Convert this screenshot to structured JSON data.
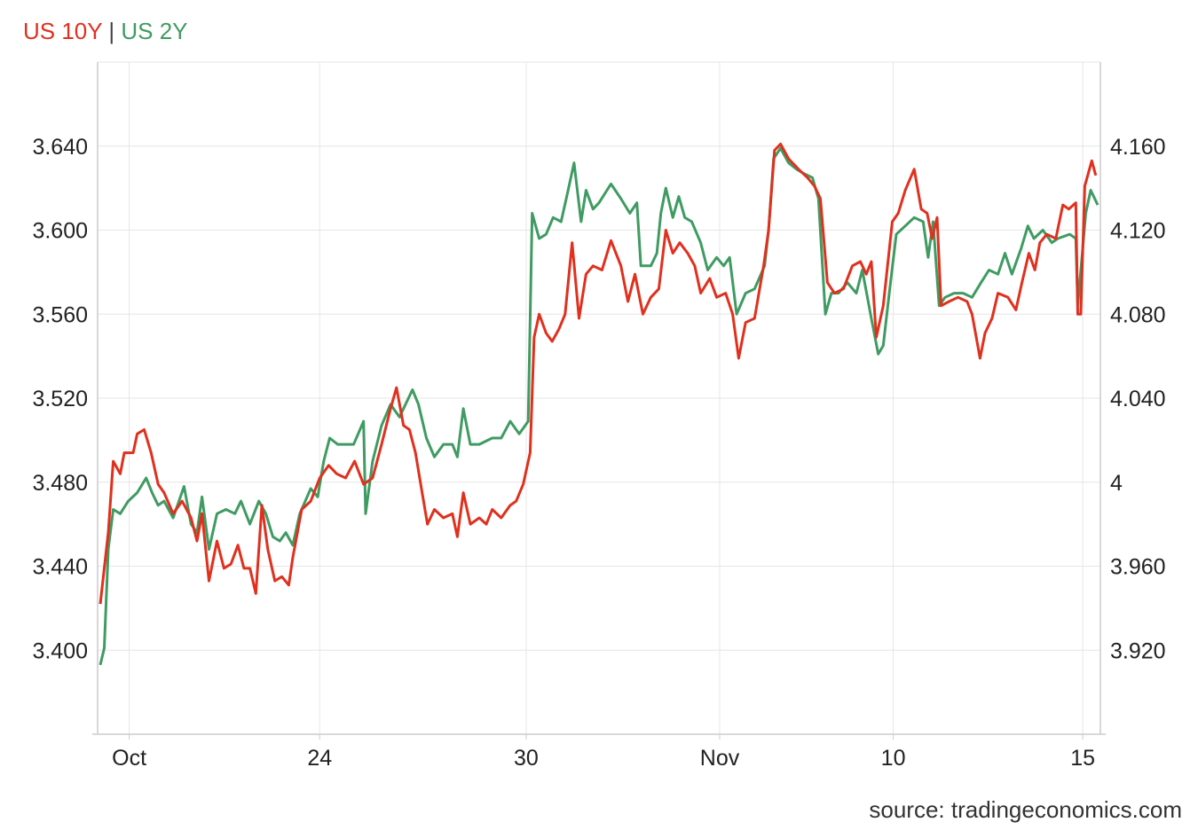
{
  "legend": {
    "series1": "US 10Y",
    "separator": "|",
    "series2": "US 2Y"
  },
  "source": "source: tradingeconomics.com",
  "colors": {
    "us10y": "#e0301e",
    "us2y": "#3f9b62",
    "grid": "#e6e6e6",
    "axis": "#cccccc",
    "text": "#222222"
  },
  "chart_data": {
    "type": "line",
    "title": "US 10Y | US 2Y",
    "xlabel": "",
    "ylabel": "",
    "x_unit": "time index (0-100 over Oct–Nov 15 window)",
    "xlim": [
      0,
      100
    ],
    "x_ticks": [
      {
        "label": "Oct",
        "x": 2.9
      },
      {
        "label": "24",
        "x": 22.0
      },
      {
        "label": "30",
        "x": 42.7
      },
      {
        "label": "Nov",
        "x": 62.1
      },
      {
        "label": "10",
        "x": 79.5
      },
      {
        "label": "15",
        "x": 98.5
      }
    ],
    "y_left": {
      "ylim": [
        3.36,
        3.68
      ],
      "ticks": [
        3.4,
        3.44,
        3.48,
        3.52,
        3.56,
        3.6,
        3.64
      ],
      "tick_labels": [
        "3.400",
        "3.440",
        "3.480",
        "3.520",
        "3.560",
        "3.600",
        "3.640"
      ]
    },
    "y_right": {
      "ylim": [
        3.88,
        4.2
      ],
      "ticks": [
        3.92,
        3.96,
        4.0,
        4.04,
        4.08,
        4.12,
        4.16
      ],
      "tick_labels": [
        "3.920",
        "3.960",
        "4",
        "4.040",
        "4.080",
        "4.120",
        "4.160"
      ]
    },
    "grid": true,
    "legend_position": "top-left",
    "series": [
      {
        "name": "US 10Y",
        "axis": "left",
        "color": "#e0301e",
        "x": [
          0,
          0.4,
          0.8,
          1.3,
          2.0,
          2.4,
          3.3,
          3.7,
          4.4,
          5.1,
          5.8,
          6.4,
          7.3,
          8.2,
          9.1,
          9.7,
          10.2,
          10.9,
          11.7,
          12.4,
          13.1,
          13.8,
          14.4,
          15.0,
          15.6,
          16.2,
          16.8,
          17.5,
          18.2,
          18.9,
          19.3,
          20.2,
          21.1,
          22.0,
          22.9,
          23.7,
          24.6,
          25.5,
          26.4,
          27.3,
          28.2,
          29.1,
          29.7,
          30.4,
          31.0,
          31.6,
          32.2,
          32.8,
          33.5,
          34.4,
          35.3,
          35.8,
          36.4,
          37.1,
          38.0,
          38.7,
          39.3,
          40.2,
          41.1,
          41.7,
          42.4,
          43.1,
          43.5,
          44.0,
          44.7,
          45.3,
          46.0,
          46.6,
          47.3,
          48.0,
          48.7,
          49.4,
          50.3,
          51.2,
          52.2,
          52.9,
          53.6,
          54.4,
          55.2,
          56.0,
          56.7,
          57.4,
          58.1,
          58.9,
          59.6,
          60.2,
          61.1,
          61.8,
          62.7,
          63.4,
          64.0,
          64.7,
          65.6,
          66.5,
          67.0,
          67.6,
          68.2,
          69.0,
          70.0,
          70.9,
          71.6,
          72.2,
          72.9,
          73.6,
          74.5,
          75.4,
          76.2,
          76.8,
          77.3,
          77.8,
          78.5,
          79.4,
          80.0,
          80.7,
          81.6,
          82.3,
          82.9,
          83.4,
          83.9,
          84.3,
          85.1,
          86.0,
          86.9,
          87.4,
          88.2,
          88.7,
          89.4,
          90.0,
          91.0,
          91.8,
          92.4,
          93.1,
          93.7,
          94.2,
          94.9,
          95.8,
          96.5,
          97.1,
          97.8,
          98.0,
          98.3,
          98.7,
          99.4,
          99.8
        ],
        "y": [
          3.422,
          3.439,
          3.456,
          3.49,
          3.484,
          3.494,
          3.494,
          3.503,
          3.505,
          3.494,
          3.479,
          3.475,
          3.465,
          3.471,
          3.463,
          3.452,
          3.465,
          3.433,
          3.452,
          3.439,
          3.441,
          3.45,
          3.439,
          3.439,
          3.427,
          3.469,
          3.448,
          3.433,
          3.435,
          3.431,
          3.444,
          3.467,
          3.471,
          3.482,
          3.488,
          3.484,
          3.482,
          3.49,
          3.479,
          3.482,
          3.498,
          3.515,
          3.525,
          3.507,
          3.505,
          3.494,
          3.477,
          3.46,
          3.467,
          3.463,
          3.465,
          3.454,
          3.475,
          3.46,
          3.463,
          3.46,
          3.467,
          3.463,
          3.469,
          3.471,
          3.479,
          3.494,
          3.549,
          3.56,
          3.551,
          3.547,
          3.553,
          3.56,
          3.594,
          3.558,
          3.579,
          3.583,
          3.581,
          3.595,
          3.583,
          3.566,
          3.579,
          3.56,
          3.568,
          3.572,
          3.6,
          3.589,
          3.594,
          3.589,
          3.583,
          3.57,
          3.577,
          3.568,
          3.57,
          3.56,
          3.539,
          3.556,
          3.558,
          3.583,
          3.6,
          3.638,
          3.641,
          3.634,
          3.629,
          3.625,
          3.621,
          3.615,
          3.575,
          3.57,
          3.572,
          3.583,
          3.585,
          3.579,
          3.585,
          3.549,
          3.564,
          3.604,
          3.608,
          3.619,
          3.629,
          3.61,
          3.608,
          3.596,
          3.606,
          3.564,
          3.566,
          3.568,
          3.566,
          3.56,
          3.539,
          3.551,
          3.558,
          3.57,
          3.568,
          3.562,
          3.575,
          3.589,
          3.581,
          3.594,
          3.598,
          3.596,
          3.612,
          3.61,
          3.613,
          3.56,
          3.56,
          3.621,
          3.633,
          3.626
        ]
      },
      {
        "name": "US 2Y",
        "axis": "right",
        "color": "#3f9b62",
        "x": [
          0,
          0.4,
          0.8,
          1.3,
          2.0,
          2.8,
          3.7,
          4.6,
          5.2,
          5.8,
          6.4,
          7.3,
          8.4,
          9.1,
          9.7,
          10.2,
          10.9,
          11.7,
          12.6,
          13.5,
          14.1,
          15.0,
          15.9,
          16.6,
          17.3,
          18.0,
          18.6,
          19.3,
          20.0,
          21.1,
          21.8,
          22.4,
          23.0,
          23.8,
          24.6,
          25.4,
          26.4,
          26.6,
          27.3,
          28.2,
          29.1,
          30.0,
          30.9,
          31.3,
          31.9,
          32.7,
          33.5,
          34.4,
          35.3,
          35.8,
          36.4,
          37.1,
          38.0,
          39.3,
          40.2,
          41.1,
          42.0,
          42.9,
          43.3,
          44.0,
          44.7,
          45.4,
          46.2,
          46.9,
          47.5,
          48.2,
          48.7,
          49.4,
          50.0,
          51.2,
          52.2,
          53.1,
          53.8,
          54.2,
          55.2,
          55.8,
          56.2,
          56.7,
          57.4,
          58.0,
          58.6,
          59.3,
          60.2,
          60.9,
          61.8,
          62.5,
          63.1,
          63.8,
          64.7,
          65.6,
          66.6,
          67.0,
          67.5,
          68.2,
          69.0,
          69.8,
          70.5,
          71.4,
          72.0,
          72.7,
          73.3,
          74.0,
          74.9,
          75.8,
          76.4,
          77.3,
          78.0,
          78.5,
          79.1,
          79.8,
          80.7,
          81.6,
          82.5,
          83.0,
          83.5,
          84.1,
          84.7,
          85.6,
          86.5,
          87.4,
          88.3,
          89.1,
          90.0,
          90.7,
          91.4,
          92.3,
          93.0,
          93.6,
          94.5,
          95.4,
          96.0,
          97.2,
          97.8,
          98.0,
          98.8,
          99.3,
          100
        ],
        "y": [
          3.913,
          3.921,
          3.968,
          3.987,
          3.985,
          3.991,
          3.995,
          4.002,
          3.995,
          3.989,
          3.991,
          3.983,
          3.998,
          3.98,
          3.976,
          3.993,
          3.968,
          3.985,
          3.987,
          3.985,
          3.991,
          3.98,
          3.991,
          3.985,
          3.974,
          3.972,
          3.976,
          3.97,
          3.985,
          3.997,
          3.993,
          4.01,
          4.021,
          4.018,
          4.018,
          4.018,
          4.029,
          3.985,
          4.01,
          4.027,
          4.037,
          4.031,
          4.04,
          4.044,
          4.037,
          4.021,
          4.012,
          4.018,
          4.018,
          4.012,
          4.035,
          4.018,
          4.018,
          4.021,
          4.021,
          4.029,
          4.023,
          4.029,
          4.128,
          4.116,
          4.118,
          4.126,
          4.124,
          4.139,
          4.152,
          4.124,
          4.139,
          4.13,
          4.133,
          4.142,
          4.135,
          4.128,
          4.133,
          4.103,
          4.103,
          4.109,
          4.128,
          4.14,
          4.126,
          4.136,
          4.126,
          4.124,
          4.114,
          4.101,
          4.107,
          4.103,
          4.107,
          4.08,
          4.09,
          4.092,
          4.103,
          4.12,
          4.154,
          4.159,
          4.152,
          4.149,
          4.147,
          4.145,
          4.135,
          4.08,
          4.09,
          4.09,
          4.095,
          4.09,
          4.101,
          4.078,
          4.061,
          4.065,
          4.09,
          4.118,
          4.122,
          4.126,
          4.124,
          4.107,
          4.124,
          4.084,
          4.088,
          4.09,
          4.09,
          4.088,
          4.095,
          4.101,
          4.099,
          4.109,
          4.099,
          4.111,
          4.122,
          4.116,
          4.12,
          4.114,
          4.116,
          4.118,
          4.116,
          4.084,
          4.128,
          4.139,
          4.132
        ]
      }
    ]
  }
}
